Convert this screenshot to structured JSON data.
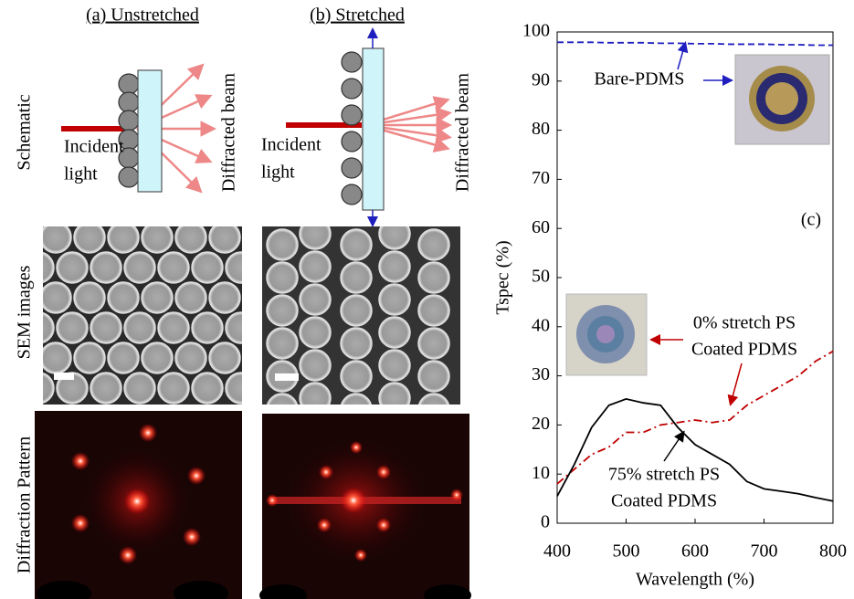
{
  "panels": {
    "columns": [
      "(a) Unstretched",
      "(b) Stretched"
    ],
    "rows": [
      "Schematic",
      "SEM images",
      "Diffraction Pattern"
    ],
    "incident": [
      "Incident",
      "light"
    ],
    "diffracted": "Diffracted beam"
  },
  "chart_data": {
    "type": "line",
    "x": [
      400,
      425,
      450,
      475,
      500,
      525,
      550,
      575,
      600,
      625,
      650,
      675,
      700,
      725,
      750,
      775,
      800
    ],
    "series": [
      {
        "color": "#1f1fbf",
        "dash": "dashed",
        "values": [
          97.9,
          97.9,
          97.9,
          97.8,
          97.8,
          97.8,
          97.7,
          97.7,
          97.6,
          97.6,
          97.5,
          97.5,
          97.5,
          97.4,
          97.4,
          97.3,
          97.3
        ]
      },
      {
        "color": "#c00000",
        "dash": "dashdot",
        "values": [
          8,
          11,
          14,
          15.5,
          18.5,
          18.5,
          20,
          20.5,
          21,
          20.5,
          21,
          24,
          26,
          28,
          30,
          33,
          35
        ]
      },
      {
        "color": "#000000",
        "dash": "solid",
        "values": [
          5.5,
          12,
          19.5,
          24,
          25.3,
          24.5,
          24,
          19.5,
          16,
          14,
          12,
          8.5,
          7,
          6.5,
          6,
          5.2,
          4.5
        ]
      }
    ],
    "xlabel": "Wavelength (%)",
    "ylabel": "Tspec (%)",
    "xlim": [
      400,
      800
    ],
    "ylim": [
      0,
      100
    ],
    "xticks": [
      400,
      500,
      600,
      700,
      800
    ],
    "yticks": [
      0,
      10,
      20,
      30,
      40,
      50,
      60,
      70,
      80,
      90,
      100
    ],
    "annotations": {
      "bare": "Bare-PDMS",
      "panel": "(c)",
      "stretch0": [
        "0% stretch PS",
        "Coated PDMS"
      ],
      "stretch75": [
        "75% stretch PS",
        "Coated PDMS"
      ]
    }
  }
}
